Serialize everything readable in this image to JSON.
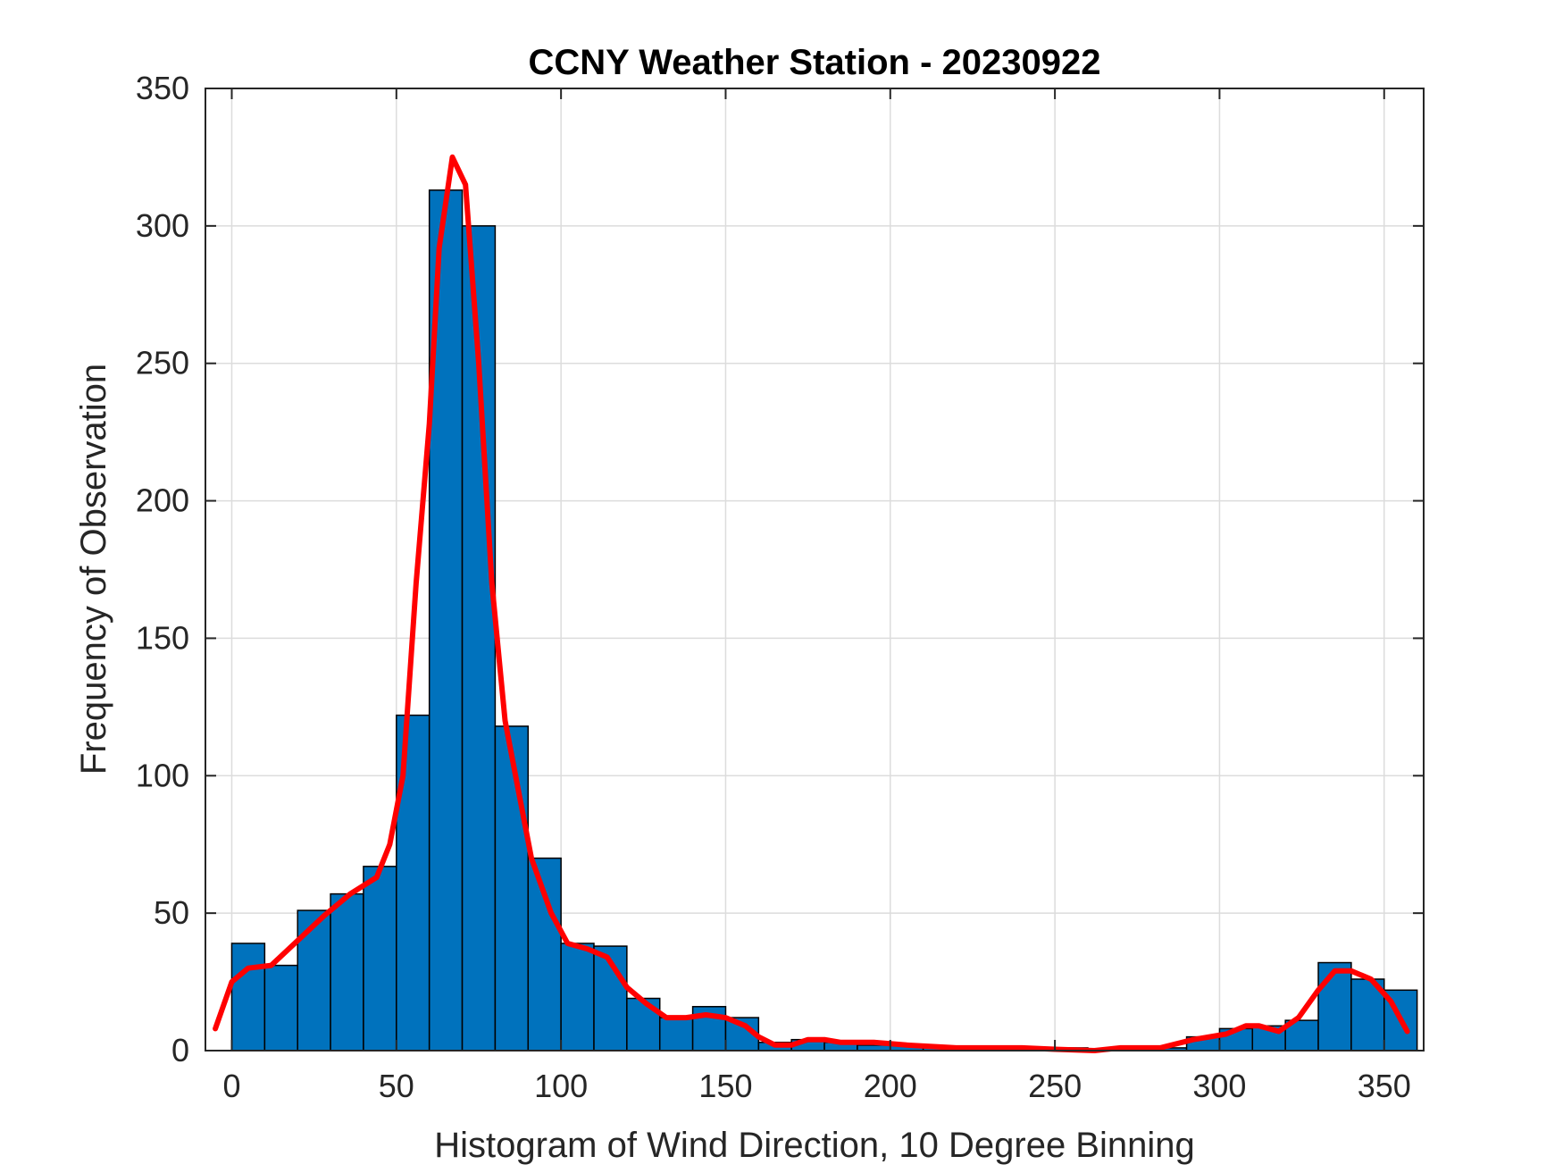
{
  "chart_data": {
    "type": "bar",
    "title": "CCNY Weather Station - 20230922",
    "xlabel": "Histogram of Wind Direction, 10 Degree Binning",
    "ylabel": "Frequency of Observation",
    "xlim": [
      -8,
      362
    ],
    "ylim": [
      0,
      350
    ],
    "xticks": [
      0,
      50,
      100,
      150,
      200,
      250,
      300,
      350
    ],
    "yticks": [
      0,
      50,
      100,
      150,
      200,
      250,
      300,
      350
    ],
    "grid": true,
    "bin_width": 10,
    "bin_edges": [
      0,
      10,
      20,
      30,
      40,
      50,
      60,
      70,
      80,
      90,
      100,
      110,
      120,
      130,
      140,
      150,
      160,
      170,
      180,
      190,
      200,
      210,
      220,
      230,
      240,
      250,
      260,
      270,
      280,
      290,
      300,
      310,
      320,
      330,
      340,
      350,
      360
    ],
    "values": [
      39,
      31,
      51,
      57,
      67,
      122,
      313,
      300,
      118,
      70,
      39,
      38,
      19,
      12,
      16,
      12,
      3,
      4,
      3,
      2,
      2,
      1,
      1,
      1,
      1,
      1,
      0,
      1,
      1,
      5,
      8,
      9,
      11,
      32,
      26,
      22
    ],
    "bar_color": "#0072BD",
    "curve": {
      "color": "#FF0000",
      "points": [
        [
          -5,
          8
        ],
        [
          0,
          25
        ],
        [
          5,
          30
        ],
        [
          12,
          31
        ],
        [
          20,
          40
        ],
        [
          28,
          49
        ],
        [
          36,
          57
        ],
        [
          44,
          63
        ],
        [
          48,
          75
        ],
        [
          52,
          100
        ],
        [
          56,
          170
        ],
        [
          60,
          228
        ],
        [
          63,
          292
        ],
        [
          67,
          325
        ],
        [
          71,
          315
        ],
        [
          75,
          250
        ],
        [
          79,
          170
        ],
        [
          83,
          120
        ],
        [
          87,
          95
        ],
        [
          91,
          70
        ],
        [
          97,
          50
        ],
        [
          102,
          39
        ],
        [
          108,
          37
        ],
        [
          114,
          34
        ],
        [
          120,
          23
        ],
        [
          126,
          17
        ],
        [
          132,
          12
        ],
        [
          138,
          12
        ],
        [
          144,
          13
        ],
        [
          150,
          12
        ],
        [
          156,
          9
        ],
        [
          160,
          5
        ],
        [
          165,
          2
        ],
        [
          170,
          2
        ],
        [
          175,
          4
        ],
        [
          180,
          4
        ],
        [
          185,
          3
        ],
        [
          195,
          3
        ],
        [
          205,
          2
        ],
        [
          220,
          1
        ],
        [
          240,
          1
        ],
        [
          250,
          0.5
        ],
        [
          262,
          0
        ],
        [
          270,
          1
        ],
        [
          282,
          1
        ],
        [
          292,
          4
        ],
        [
          302,
          6
        ],
        [
          308,
          9
        ],
        [
          312,
          9
        ],
        [
          318,
          7
        ],
        [
          324,
          12
        ],
        [
          330,
          22
        ],
        [
          335,
          29
        ],
        [
          340,
          29
        ],
        [
          346,
          26
        ],
        [
          352,
          18
        ],
        [
          357,
          7
        ]
      ]
    }
  }
}
